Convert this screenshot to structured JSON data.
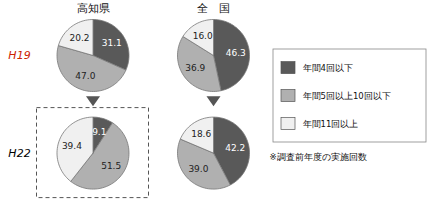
{
  "chart_data": {
    "type": "pie",
    "categories": [
      "年間4回以下",
      "年間5回以上10回以下",
      "年間11回以上"
    ],
    "colors": [
      "#595959",
      "#b0b0b0",
      "#f0f0f0"
    ],
    "legend": "right",
    "data_labels": true,
    "facet_columns": [
      "高知県",
      "全　国"
    ],
    "facet_rows": [
      "H19",
      "H22"
    ],
    "facet_row_colors": [
      "#cc2200",
      "#000000"
    ],
    "series": [
      {
        "values": [
          31.1,
          47.0,
          20.2
        ],
        "value_labels": [
          "31.1",
          "47.0",
          "20.2"
        ]
      },
      {
        "values": [
          46.3,
          36.9,
          16.0
        ],
        "value_labels": [
          "46.3",
          "36.9",
          "16.0"
        ]
      },
      {
        "values": [
          9.1,
          51.5,
          39.4
        ],
        "value_labels": [
          "9.1",
          "51.5",
          "39.4"
        ]
      },
      {
        "values": [
          42.2,
          39.0,
          18.6
        ],
        "value_labels": [
          "42.2",
          "39.0",
          "18.6"
        ]
      }
    ],
    "highlight": {
      "row": "H22",
      "column": "高知県"
    },
    "annotations": [
      "※調査前年度の実施回数"
    ]
  }
}
